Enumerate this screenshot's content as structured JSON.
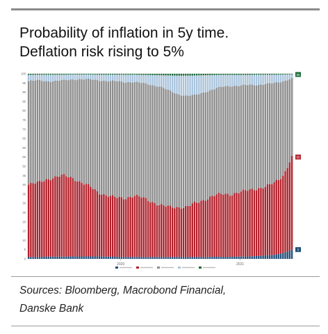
{
  "header": {
    "title_line1": "Probability of inflation in 5y time.",
    "title_line2": "Deflation risk rising to 5%"
  },
  "footer": {
    "sources_line1": "Sources: Bloomberg, Macrobond Financial,",
    "sources_line2": "Danske Bank"
  },
  "chart_data": {
    "type": "area",
    "stacked": true,
    "xlabel": "",
    "ylabel": "",
    "ylim": [
      0,
      100
    ],
    "y_ticks": [
      "100",
      "95",
      "90",
      "85",
      "80",
      "75",
      "70",
      "65",
      "60",
      "55",
      "50",
      "45",
      "40",
      "35",
      "30",
      "25",
      "20",
      "15",
      "10",
      "5",
      "0"
    ],
    "x_tick_labels": [
      "2020",
      "2021"
    ],
    "legend_position": "bottom",
    "series": [
      {
        "color": "#1f4e79"
      },
      {
        "color": "#b0202a"
      },
      {
        "color": "#8c8c8c"
      },
      {
        "color": "#a9c4dc"
      },
      {
        "color": "#1e6b3a"
      }
    ],
    "boundaries": {
      "deflation": [
        1,
        1,
        1.2,
        1.2,
        1.2,
        1.3,
        1.3,
        1.3,
        1.3,
        1.2,
        1.1,
        1,
        1,
        1,
        1,
        1,
        1,
        1,
        1,
        1,
        1,
        1.1,
        1.1,
        1.1,
        1.2,
        1.3,
        1.5,
        1.8,
        2.2,
        3,
        5
      ],
      "inflation_0_2_top": [
        40,
        41,
        43,
        44,
        45,
        44,
        41,
        39,
        36,
        34,
        33,
        33,
        34,
        33,
        31,
        29,
        28,
        28,
        28,
        30,
        32,
        34,
        35,
        35,
        36,
        37,
        38,
        39,
        41,
        45,
        55
      ],
      "inflation_2_4_top": [
        96,
        96.5,
        96,
        96,
        96.5,
        97,
        97,
        97,
        96.5,
        96,
        96,
        95.5,
        95.5,
        95,
        94,
        93,
        91,
        89,
        88,
        88.5,
        90,
        91.5,
        93,
        93.5,
        93.5,
        94,
        94,
        94.5,
        95,
        96,
        97.5
      ],
      "inflation_4_6_top": [
        99.4,
        99.5,
        99.5,
        99.5,
        99.5,
        99.6,
        99.6,
        99.6,
        99.5,
        99.5,
        99.5,
        99.5,
        99.5,
        99.4,
        99.3,
        99.2,
        99.1,
        99,
        99,
        99.1,
        99.2,
        99.3,
        99.4,
        99.4,
        99.4,
        99.4,
        99.5,
        99.5,
        99.5,
        99.6,
        99.7
      ]
    },
    "end_labels": [
      "96",
      "55",
      "5"
    ],
    "end_label_colors": [
      "#1e6b3a",
      "#b0202a",
      "#1f4e79"
    ]
  }
}
